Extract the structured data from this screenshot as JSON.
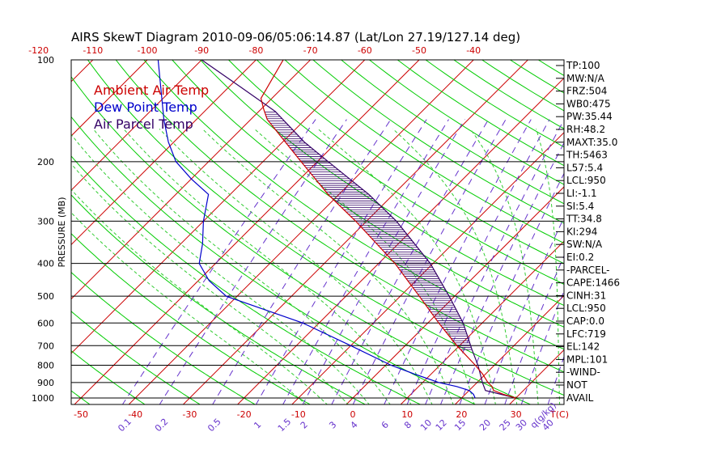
{
  "title": "AIRS SkewT Diagram 2010-09-06/05:06:14.87 (Lat/Lon 27.19/127.14 deg)",
  "colors": {
    "ambient": "#cc0000",
    "dewpoint": "#0000cc",
    "parcel": "#330066",
    "isotherm": "#cc0000",
    "dry_adiabat": "#00cc00",
    "moist_adiabat": "#33cc33",
    "mixing_ratio": "#6633cc",
    "isobar": "#000000",
    "hatch": "#330066"
  },
  "chart_data": {
    "type": "line",
    "title": "AIRS SkewT Diagram 2010-09-06/05:06:14.87 (Lat/Lon 27.19/127.14 deg)",
    "ylabel": "PRESSURE (MB)",
    "xlabel_unit": "T(C)",
    "mixing_ratio_unit": "q(g/kg)",
    "y_scale": "log",
    "ylim": [
      1000,
      100
    ],
    "pressure_ticks": [
      100,
      200,
      300,
      400,
      500,
      600,
      700,
      800,
      900,
      1000
    ],
    "top_temp_ticks": [
      -120,
      -110,
      -100,
      -90,
      -80,
      -70,
      -60,
      -50,
      -40
    ],
    "bottom_temp_ticks": [
      -50,
      -40,
      -30,
      -20,
      -10,
      0,
      10,
      20,
      30
    ],
    "mixing_ratio_ticks": [
      "0.1",
      "0.2",
      "0.5",
      "1",
      "1.5",
      "2",
      "3",
      "4",
      "6",
      "8",
      "10",
      "12",
      "15",
      "20",
      "25",
      "30",
      "40"
    ],
    "legend": [
      "Ambient Air Temp",
      "Dew Point Temp",
      "Air Parcel Temp"
    ],
    "series": [
      {
        "name": "Ambient Air Temp",
        "points": [
          {
            "p": 1000,
            "t": 30.0
          },
          {
            "p": 975,
            "t": 27.0
          },
          {
            "p": 950,
            "t": 24.5
          },
          {
            "p": 925,
            "t": 23.5
          },
          {
            "p": 900,
            "t": 22.0
          },
          {
            "p": 850,
            "t": 19.5
          },
          {
            "p": 800,
            "t": 16.5
          },
          {
            "p": 700,
            "t": 9.5
          },
          {
            "p": 600,
            "t": 2.0
          },
          {
            "p": 500,
            "t": -6.5
          },
          {
            "p": 400,
            "t": -17.0
          },
          {
            "p": 300,
            "t": -32.0
          },
          {
            "p": 250,
            "t": -42.0
          },
          {
            "p": 200,
            "t": -53.0
          },
          {
            "p": 175,
            "t": -59.5
          },
          {
            "p": 150,
            "t": -67.0
          },
          {
            "p": 140,
            "t": -69.5
          },
          {
            "p": 130,
            "t": -72.0
          },
          {
            "p": 100,
            "t": -75.0
          }
        ]
      },
      {
        "name": "Dew Point Temp",
        "points": [
          {
            "p": 1000,
            "t": 22.5
          },
          {
            "p": 975,
            "t": 21.5
          },
          {
            "p": 950,
            "t": 20.0
          },
          {
            "p": 925,
            "t": 17.0
          },
          {
            "p": 900,
            "t": 13.0
          },
          {
            "p": 850,
            "t": 7.0
          },
          {
            "p": 800,
            "t": 1.0
          },
          {
            "p": 700,
            "t": -10.0
          },
          {
            "p": 600,
            "t": -23.0
          },
          {
            "p": 500,
            "t": -42.0
          },
          {
            "p": 450,
            "t": -48.0
          },
          {
            "p": 400,
            "t": -53.0
          },
          {
            "p": 350,
            "t": -56.0
          },
          {
            "p": 300,
            "t": -60.0
          },
          {
            "p": 250,
            "t": -64.0
          },
          {
            "p": 225,
            "t": -70.0
          },
          {
            "p": 200,
            "t": -76.0
          },
          {
            "p": 175,
            "t": -81.0
          },
          {
            "p": 150,
            "t": -86.0
          },
          {
            "p": 100,
            "t": -98.0
          }
        ]
      },
      {
        "name": "Air Parcel Temp",
        "points": [
          {
            "p": 1000,
            "t": 30.0
          },
          {
            "p": 950,
            "t": 23.0
          },
          {
            "p": 900,
            "t": 21.0
          },
          {
            "p": 800,
            "t": 17.0
          },
          {
            "p": 719,
            "t": 13.0
          },
          {
            "p": 600,
            "t": 6.5
          },
          {
            "p": 500,
            "t": -1.0
          },
          {
            "p": 400,
            "t": -10.5
          },
          {
            "p": 300,
            "t": -24.5
          },
          {
            "p": 250,
            "t": -34.5
          },
          {
            "p": 200,
            "t": -48.0
          },
          {
            "p": 175,
            "t": -56.0
          },
          {
            "p": 142,
            "t": -67.0
          },
          {
            "p": 120,
            "t": -78.0
          },
          {
            "p": 100,
            "t": -90.0
          }
        ]
      }
    ],
    "indices": [
      "TP:100",
      "MW:N/A",
      "FRZ:504",
      "WB0:475",
      "PW:35.44",
      "RH:48.2",
      "MAXT:35.0",
      "TH:5463",
      "L57:5.4",
      "LCL:950",
      "LI:-1.1",
      "SI:5.4",
      "TT:34.8",
      "KI:294",
      "SW:N/A",
      "EI:0.2",
      "-PARCEL-",
      "CAPE:1466",
      "CINH:31",
      "LCL:950",
      "CAP:0.0",
      "LFC:719",
      "EL:142",
      "MPL:101",
      "-WIND-",
      "NOT",
      "AVAIL"
    ]
  }
}
